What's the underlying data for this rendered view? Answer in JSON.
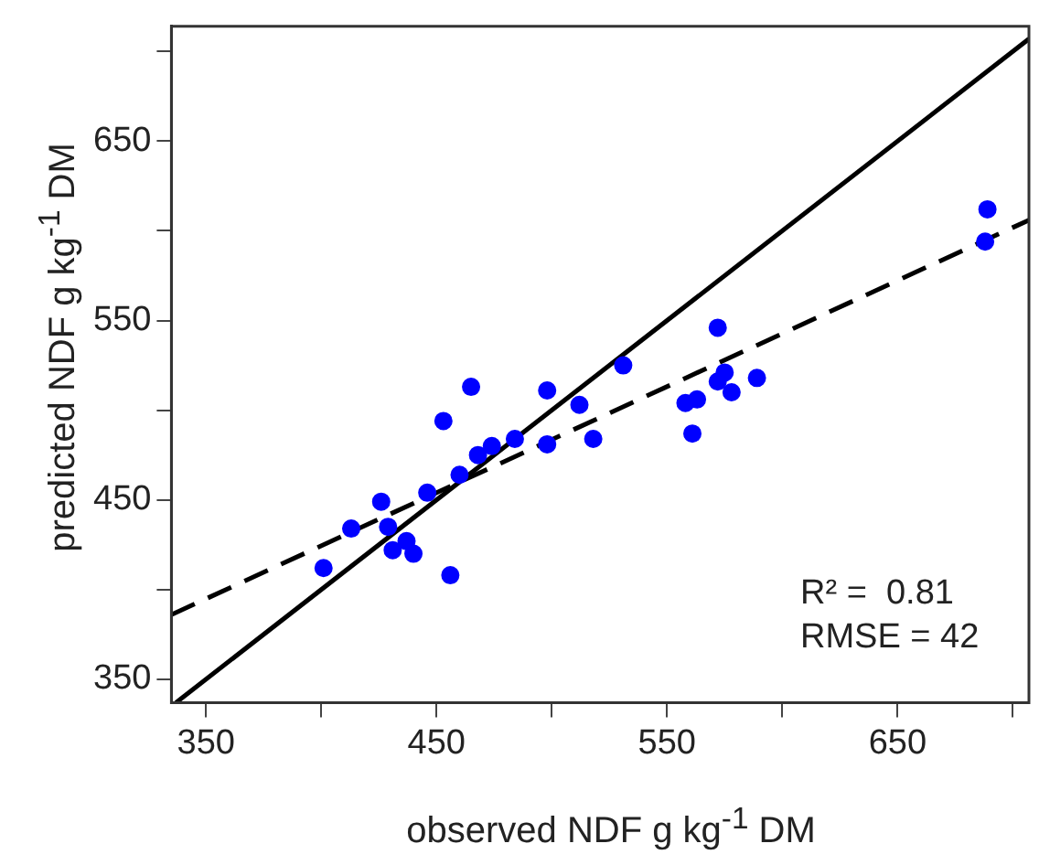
{
  "chart_data": {
    "type": "scatter",
    "xlabel": "observed NDF g kg$^{-1}$ DM",
    "ylabel": "predicted NDF g kg$^{-1}$ DM",
    "xlim": [
      335,
      707
    ],
    "ylim": [
      337,
      714
    ],
    "xticks": [
      350,
      {
        "value": 400,
        "label": null
      },
      450,
      {
        "value": 500,
        "label": null
      },
      550,
      {
        "value": 600,
        "label": null
      },
      650,
      {
        "value": 700,
        "label": null
      }
    ],
    "yticks": [
      350,
      {
        "value": 400,
        "label": null
      },
      450,
      {
        "value": 500,
        "label": null
      },
      550,
      {
        "value": 600,
        "label": null
      },
      650,
      {
        "value": 700,
        "label": null
      }
    ],
    "grid": false,
    "legend": false,
    "marker": "circle",
    "annotations": [
      "R² =  0.81",
      "RMSE = 42"
    ],
    "series": [
      {
        "color": "#0000ff",
        "x": [
          401,
          413,
          426,
          429,
          431,
          437,
          440,
          446,
          456,
          453,
          460,
          465,
          468,
          474,
          484,
          498,
          498,
          512,
          518,
          531,
          558,
          563,
          561,
          572,
          572,
          575,
          578,
          589,
          689,
          688
        ],
        "values": [
          412,
          434,
          449,
          435,
          422,
          427,
          420,
          454,
          408,
          494,
          464,
          513,
          475,
          480,
          484,
          511,
          481,
          503,
          484,
          525,
          504,
          506,
          487,
          546,
          516,
          521,
          510,
          518,
          612,
          594
        ]
      },
      {
        "type": "line",
        "color": "#000000",
        "marker": "none",
        "line_style": "solid",
        "x": [
          337,
          707
        ],
        "values": [
          337,
          707
        ]
      },
      {
        "type": "line",
        "color": "#000000",
        "marker": "none",
        "line_style": "dashed",
        "x": [
          335,
          707
        ],
        "values": [
          386,
          606
        ]
      }
    ]
  }
}
